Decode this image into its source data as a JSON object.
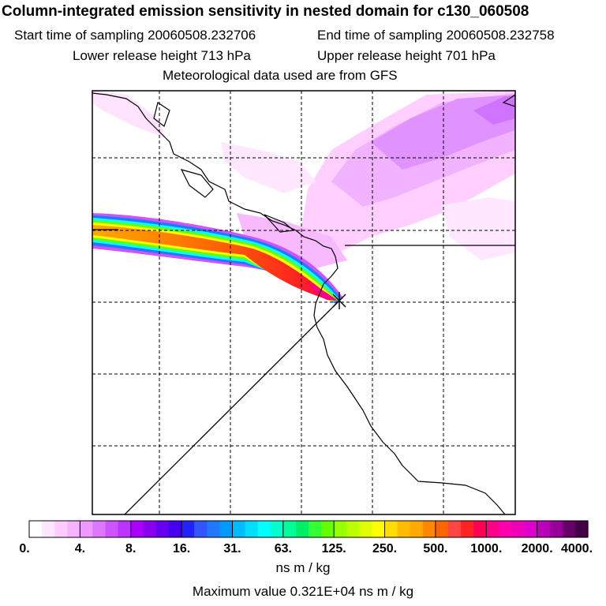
{
  "chart_data": {
    "type": "heatmap",
    "title": "Column-integrated emission sensitivity in nested domain for c130_060508",
    "start_label": "Start time of sampling 20060508.232706",
    "end_label": "End time of sampling 20060508.232758",
    "lower_label": "Lower release height  713 hPa",
    "upper_label": "Upper release height  701 hPa",
    "met_label": "Meteorological data used are from GFS",
    "colorbar": {
      "tick_labels": [
        "0.",
        "4.",
        "8.",
        "16.",
        "31.",
        "63.",
        "125.",
        "250.",
        "500.",
        "1000.",
        "2000.",
        "4000."
      ],
      "colors": [
        "#ffffff",
        "#ffe6ff",
        "#ffccff",
        "#f7b3ff",
        "#ee99ff",
        "#dd77ff",
        "#cc55ff",
        "#bb33ff",
        "#aa00ff",
        "#8800ee",
        "#6600ee",
        "#4400ee",
        "#2222ff",
        "#3355ff",
        "#2277ff",
        "#0099ff",
        "#00bbff",
        "#00ddff",
        "#00ffff",
        "#00ffcc",
        "#00ff99",
        "#00ee66",
        "#33ff33",
        "#66ff00",
        "#99ff00",
        "#bbff00",
        "#ddff00",
        "#ffff00",
        "#ffdd00",
        "#ffbb00",
        "#ffaa00",
        "#ff8800",
        "#ff6600",
        "#ff4444",
        "#ff2222",
        "#ff0055",
        "#ff0088",
        "#ff00aa",
        "#ee00bb",
        "#dd00cc",
        "#bb00bb",
        "#990099",
        "#660066",
        "#440044"
      ],
      "units": "ns m / kg"
    },
    "max_label": "Maximum value  0.321E+04 ns m / kg",
    "plume_track": "western edge of domain to release point near central coast",
    "grid": true
  }
}
